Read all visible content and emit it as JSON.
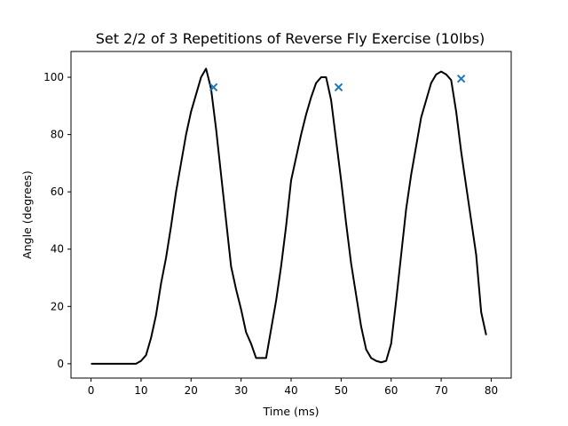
{
  "chart_data": {
    "type": "line",
    "title": "Set 2/2 of 3 Repetitions of Reverse Fly Exercise (10lbs)",
    "xlabel": "Time (ms)",
    "ylabel": "Angle (degrees)",
    "xlim": [
      -4,
      84
    ],
    "ylim": [
      -5,
      109
    ],
    "xticks": [
      0,
      10,
      20,
      30,
      40,
      50,
      60,
      70,
      80
    ],
    "yticks": [
      0,
      20,
      40,
      60,
      80,
      100
    ],
    "grid": false,
    "legend": "none",
    "series": [
      {
        "color": "#000000",
        "points": [
          [
            0,
            0
          ],
          [
            1,
            0
          ],
          [
            2,
            0
          ],
          [
            3,
            0
          ],
          [
            4,
            0
          ],
          [
            5,
            0
          ],
          [
            6,
            0
          ],
          [
            7,
            0
          ],
          [
            8,
            0
          ],
          [
            9,
            0
          ],
          [
            10,
            1
          ],
          [
            11,
            3
          ],
          [
            12,
            9
          ],
          [
            13,
            17
          ],
          [
            14,
            28
          ],
          [
            15,
            37
          ],
          [
            16,
            48
          ],
          [
            17,
            60
          ],
          [
            18,
            70
          ],
          [
            19,
            80
          ],
          [
            20,
            88
          ],
          [
            21,
            94
          ],
          [
            22,
            100
          ],
          [
            23,
            103
          ],
          [
            24,
            96
          ],
          [
            25,
            82
          ],
          [
            26,
            66
          ],
          [
            27,
            50
          ],
          [
            28,
            34
          ],
          [
            29,
            26
          ],
          [
            30,
            19
          ],
          [
            31,
            11
          ],
          [
            32,
            7
          ],
          [
            33,
            2
          ],
          [
            34,
            2
          ],
          [
            35,
            2
          ],
          [
            36,
            12
          ],
          [
            37,
            22
          ],
          [
            38,
            34
          ],
          [
            39,
            48
          ],
          [
            40,
            64
          ],
          [
            41,
            72
          ],
          [
            42,
            80
          ],
          [
            43,
            87
          ],
          [
            44,
            93
          ],
          [
            45,
            98
          ],
          [
            46,
            100
          ],
          [
            47,
            100
          ],
          [
            48,
            92
          ],
          [
            49,
            78
          ],
          [
            50,
            64
          ],
          [
            51,
            49
          ],
          [
            52,
            35
          ],
          [
            53,
            24
          ],
          [
            54,
            13
          ],
          [
            55,
            5
          ],
          [
            56,
            2
          ],
          [
            57,
            1
          ],
          [
            58,
            0.5
          ],
          [
            59,
            1
          ],
          [
            60,
            7
          ],
          [
            61,
            22
          ],
          [
            62,
            38
          ],
          [
            63,
            54
          ],
          [
            64,
            66
          ],
          [
            65,
            76
          ],
          [
            66,
            86
          ],
          [
            67,
            92
          ],
          [
            68,
            98
          ],
          [
            69,
            101
          ],
          [
            70,
            102
          ],
          [
            71,
            101
          ],
          [
            72,
            99
          ],
          [
            73,
            88
          ],
          [
            74,
            74
          ],
          [
            75,
            62
          ],
          [
            76,
            50
          ],
          [
            77,
            38
          ],
          [
            78,
            18
          ],
          [
            79,
            10
          ]
        ]
      }
    ],
    "markers": {
      "symbol": "x",
      "color": "#1f77b4",
      "points": [
        [
          24.5,
          96.5
        ],
        [
          49.5,
          96.5
        ],
        [
          74,
          99.5
        ]
      ]
    }
  }
}
